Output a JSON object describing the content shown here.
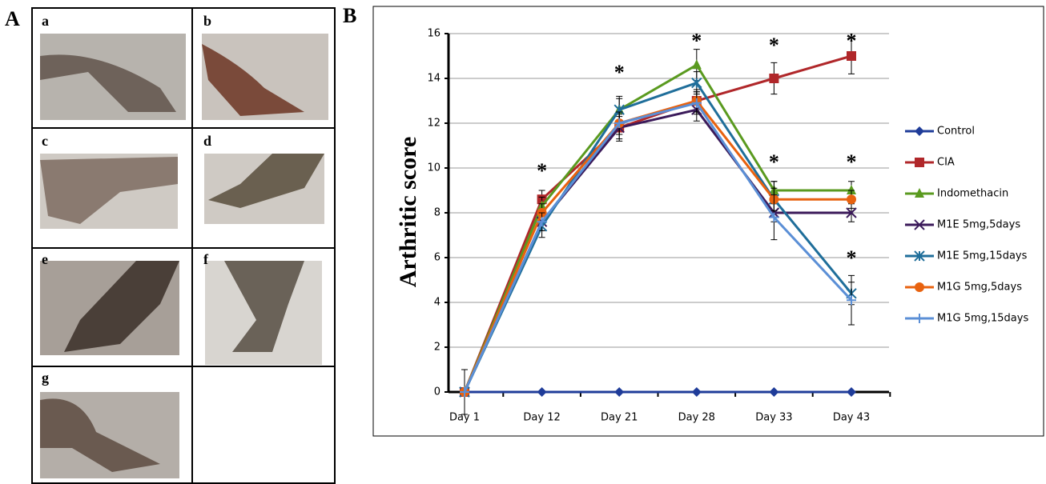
{
  "panel_labels": [
    "A",
    "B"
  ],
  "photo_labels": [
    "a",
    "b",
    "c",
    "d",
    "e",
    "f",
    "g"
  ],
  "chart_data": {
    "type": "line",
    "y_label": "Arthritic score",
    "categories": [
      "Day 1",
      "Day 12",
      "Day 21",
      "Day 28",
      "Day 33",
      "Day 43"
    ],
    "ylim": [
      0,
      16
    ],
    "yticks": [
      0,
      2,
      4,
      6,
      8,
      10,
      12,
      14,
      16
    ],
    "grid": true,
    "series": [
      {
        "name": "Control",
        "color": "#1f3c99",
        "marker": "diamond",
        "values": [
          0,
          0,
          0,
          0,
          0,
          0
        ]
      },
      {
        "name": "CIA",
        "color": "#b0272a",
        "marker": "square",
        "values": [
          0,
          8.6,
          11.8,
          13,
          14,
          15
        ],
        "errors": [
          1,
          0.4,
          0.6,
          0.4,
          0.7,
          0.8
        ]
      },
      {
        "name": "Indomethacin",
        "color": "#5a9a1f",
        "marker": "triangle",
        "values": [
          0,
          8.3,
          12.6,
          14.6,
          9,
          9
        ],
        "errors": [
          0,
          0.4,
          0.5,
          0.7,
          0.4,
          0.4
        ]
      },
      {
        "name": "M1E 5mg,5days",
        "color": "#3b1a5a",
        "marker": "x",
        "values": [
          0,
          7.6,
          11.8,
          12.6,
          8,
          8
        ],
        "errors": [
          0,
          0.4,
          0.5,
          0.5,
          0.4,
          0.4
        ]
      },
      {
        "name": "M1E 5mg,15days",
        "color": "#1f6e9a",
        "marker": "star",
        "values": [
          0,
          7.4,
          12.6,
          13.8,
          8.6,
          4.4
        ],
        "errors": [
          0,
          0.5,
          0.6,
          0.5,
          0.8,
          0.5
        ]
      },
      {
        "name": "M1G 5mg,5days",
        "color": "#e8620f",
        "marker": "circle",
        "values": [
          0,
          8,
          12,
          13,
          8.6,
          8.6
        ],
        "errors": [
          0,
          0.4,
          0.5,
          0.5,
          0.5,
          0.4
        ]
      },
      {
        "name": "M1G 5mg,15days",
        "color": "#5b8fd6",
        "marker": "plus",
        "values": [
          0,
          7.6,
          12,
          12.9,
          7.8,
          4.1
        ],
        "errors": [
          0,
          0.4,
          0.5,
          0.5,
          1,
          1.1
        ]
      }
    ],
    "annotations": [
      {
        "text": "*",
        "x": "Day 12",
        "y": 10
      },
      {
        "text": "*",
        "x": "Day 21",
        "y": 14.4
      },
      {
        "text": "*",
        "x": "Day 28",
        "y": 15.8
      },
      {
        "text": "*",
        "x": "Day 33",
        "y": 15.6
      },
      {
        "text": "*",
        "x": "Day 33",
        "y": 10.4
      },
      {
        "text": "*",
        "x": "Day 43",
        "y": 15.8
      },
      {
        "text": "*",
        "x": "Day 43",
        "y": 10.4
      },
      {
        "text": "*",
        "x": "Day 43",
        "y": 6.1
      }
    ]
  }
}
